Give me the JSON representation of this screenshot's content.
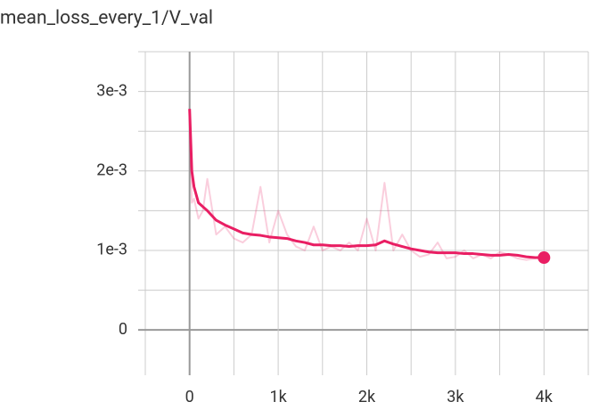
{
  "chart_data": {
    "type": "line",
    "title": "mean_loss_every_1/V_val",
    "x": [
      0,
      25,
      50,
      100,
      150,
      200,
      300,
      400,
      500,
      600,
      700,
      800,
      900,
      1000,
      1100,
      1200,
      1300,
      1400,
      1500,
      1600,
      1700,
      1800,
      1900,
      2000,
      2100,
      2200,
      2300,
      2400,
      2500,
      2600,
      2700,
      2800,
      2900,
      3000,
      3100,
      3200,
      3300,
      3400,
      3500,
      3600,
      3700,
      3800,
      3900,
      4000
    ],
    "series": [
      {
        "color": "#e91e63",
        "opacity": 0.22,
        "values": [
          0.00278,
          0.0016,
          0.00165,
          0.0014,
          0.0015,
          0.0019,
          0.0012,
          0.0013,
          0.00115,
          0.0011,
          0.0012,
          0.0018,
          0.0011,
          0.0015,
          0.0012,
          0.00105,
          0.001,
          0.0013,
          0.001,
          0.00105,
          0.001,
          0.0011,
          0.001,
          0.0014,
          0.001,
          0.00185,
          0.001,
          0.0012,
          0.001,
          0.00092,
          0.00095,
          0.0011,
          0.0009,
          0.00092,
          0.001,
          0.0009,
          0.00095,
          0.0009,
          0.00098,
          0.00095,
          0.0009,
          0.00088,
          0.0009,
          0.00091
        ]
      },
      {
        "color": "#e91e63",
        "opacity": 1,
        "values": [
          0.00278,
          0.002,
          0.0018,
          0.0016,
          0.00155,
          0.0015,
          0.00138,
          0.00132,
          0.00127,
          0.00122,
          0.0012,
          0.00119,
          0.00117,
          0.00116,
          0.00115,
          0.00112,
          0.0011,
          0.00107,
          0.00107,
          0.00106,
          0.00106,
          0.00105,
          0.00106,
          0.00106,
          0.00107,
          0.00112,
          0.00108,
          0.00105,
          0.00102,
          0.001,
          0.00098,
          0.00097,
          0.00097,
          0.00097,
          0.00096,
          0.00096,
          0.00095,
          0.00094,
          0.00094,
          0.00095,
          0.00094,
          0.00092,
          0.00091,
          0.00091
        ]
      }
    ],
    "xlim": [
      -500,
      4500
    ],
    "ylim": [
      -0.00048,
      0.0035
    ],
    "xticks": [
      0,
      {
        "value": 1000,
        "label": "1k"
      },
      {
        "value": 2000,
        "label": "2k"
      },
      {
        "value": 3000,
        "label": "3k"
      },
      {
        "value": 4000,
        "label": "4k"
      }
    ],
    "yticks": [
      0,
      {
        "value": 0.001,
        "label": "1e-3"
      },
      {
        "value": 0.002,
        "label": "2e-3"
      },
      {
        "value": 0.003,
        "label": "3e-3"
      }
    ],
    "grid": true,
    "minor_grid": true,
    "end_marker": true
  }
}
